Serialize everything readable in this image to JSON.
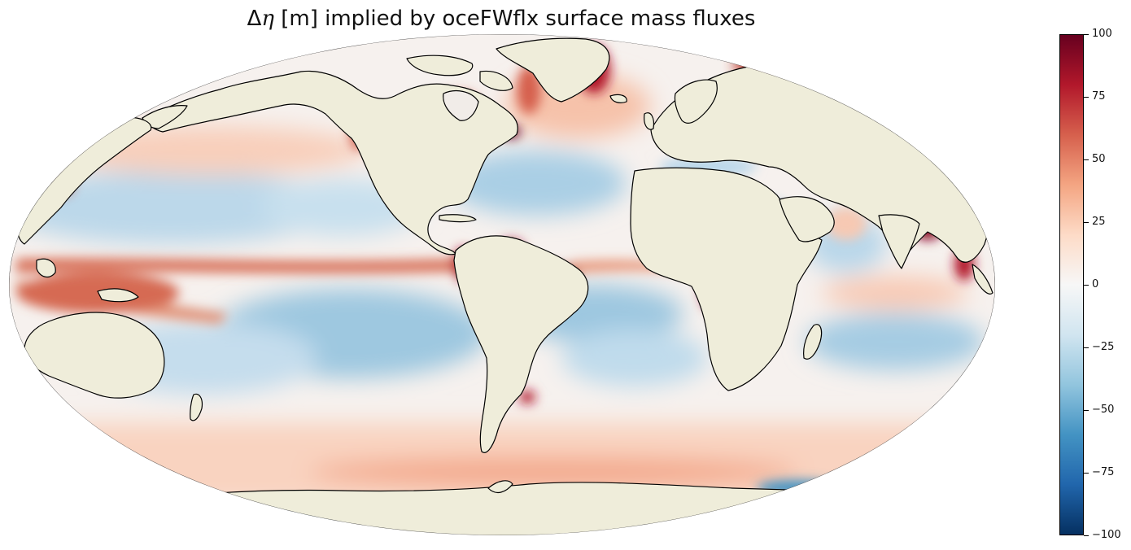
{
  "title": {
    "prefix": "Δ",
    "symbol": "η",
    "rest": " [m] implied by oceFWflx surface mass fluxes"
  },
  "map": {
    "projection": "robinson",
    "land_color": "#efedda",
    "coastline_color": "#000000"
  },
  "colorbar": {
    "colormap": "RdBu_r",
    "vmin": -100,
    "vmax": 100,
    "ticks": [
      {
        "value": 100,
        "label": "100"
      },
      {
        "value": 75,
        "label": "75"
      },
      {
        "value": 50,
        "label": "50"
      },
      {
        "value": 25,
        "label": "25"
      },
      {
        "value": 0,
        "label": "0"
      },
      {
        "value": -25,
        "label": "−25"
      },
      {
        "value": -50,
        "label": "−50"
      },
      {
        "value": -75,
        "label": "−75"
      },
      {
        "value": -100,
        "label": "−100"
      }
    ],
    "colors": [
      "#053061",
      "#2166ac",
      "#4393c3",
      "#92c5de",
      "#d1e5f0",
      "#f7f7f7",
      "#fddbc7",
      "#f4a582",
      "#d6604d",
      "#b2182b",
      "#67001f"
    ]
  }
}
